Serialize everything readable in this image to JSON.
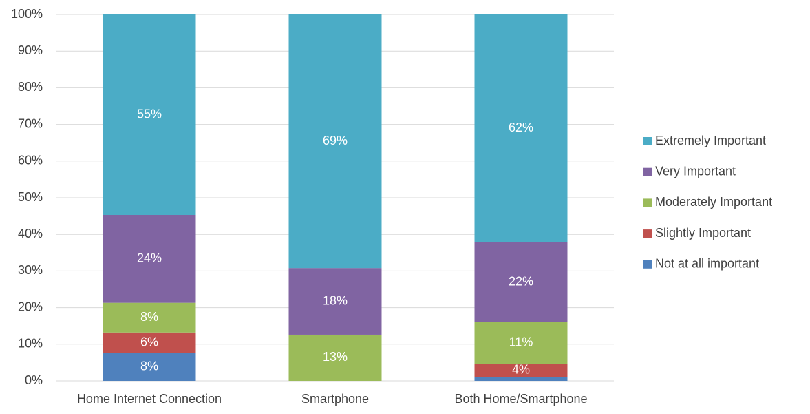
{
  "chart_data": {
    "type": "stacked_bar",
    "categories": [
      "Home Internet Connection",
      "Smartphone",
      "Both Home/Smartphone"
    ],
    "series": [
      {
        "name": "Not at all important",
        "color": "#4f81bd",
        "values": [
          7.6,
          0,
          1.1
        ],
        "value_labels": [
          "8%",
          null,
          null
        ]
      },
      {
        "name": "Slightly Important",
        "color": "#c0504d",
        "values": [
          5.6,
          0,
          3.6
        ],
        "value_labels": [
          "6%",
          null,
          "4%"
        ]
      },
      {
        "name": "Moderately Important",
        "color": "#9bbb59",
        "values": [
          8.1,
          12.6,
          11.4
        ],
        "value_labels": [
          "8%",
          "13%",
          "11%"
        ]
      },
      {
        "name": "Very Important",
        "color": "#8064a2",
        "values": [
          24.0,
          18.2,
          21.7
        ],
        "value_labels": [
          "24%",
          "18%",
          "22%"
        ]
      },
      {
        "name": "Extremely Important",
        "color": "#4bacc6",
        "values": [
          54.7,
          69.2,
          62.2
        ],
        "value_labels": [
          "55%",
          "69%",
          "62%"
        ]
      }
    ],
    "ylim": [
      0,
      100
    ],
    "yticks": [
      {
        "value": 0,
        "label": "0%"
      },
      {
        "value": 10,
        "label": "10%"
      },
      {
        "value": 20,
        "label": "20%"
      },
      {
        "value": 30,
        "label": "30%"
      },
      {
        "value": 40,
        "label": "40%"
      },
      {
        "value": 50,
        "label": "50%"
      },
      {
        "value": 60,
        "label": "60%"
      },
      {
        "value": 70,
        "label": "70%"
      },
      {
        "value": 80,
        "label": "80%"
      },
      {
        "value": 90,
        "label": "90%"
      },
      {
        "value": 100,
        "label": "100%"
      }
    ],
    "grid": true,
    "legend": "right"
  }
}
